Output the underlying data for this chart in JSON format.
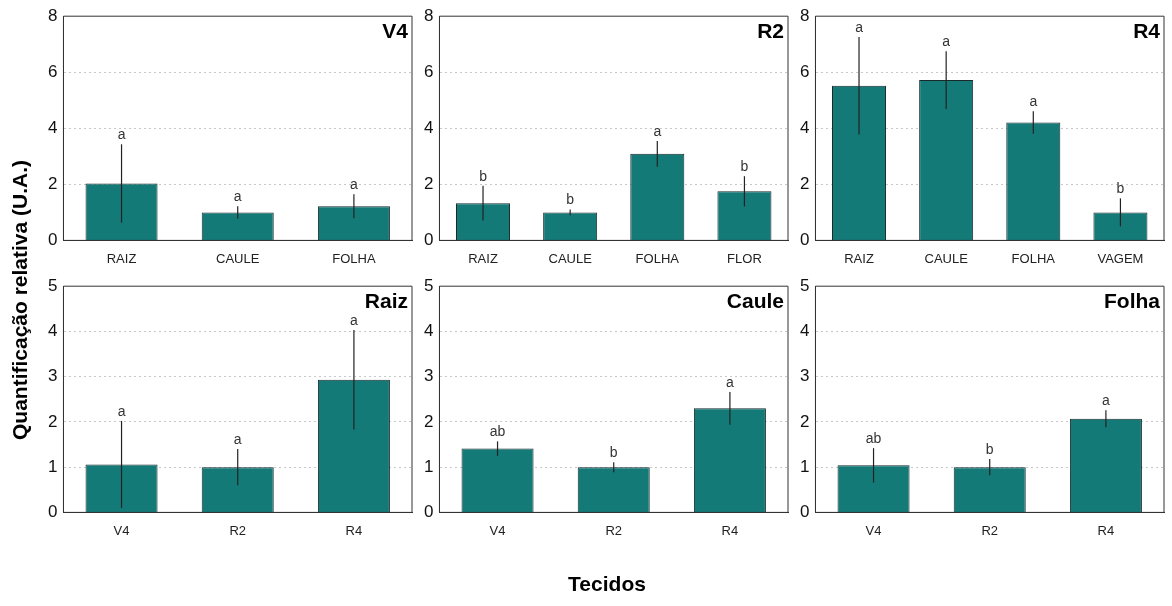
{
  "chart_data": [
    {
      "type": "bar",
      "title": "V4",
      "ylabel": "Quantificação relativa (U.A.)",
      "categories": [
        "RAIZ",
        "CAULE",
        "FOLHA"
      ],
      "values": [
        2.03,
        1.0,
        1.22
      ],
      "errors": [
        1.4,
        0.22,
        0.43
      ],
      "color": "#137a78",
      "ylim": [
        0,
        8
      ],
      "yticks": [
        0,
        2,
        4,
        6,
        8
      ],
      "grid": "y",
      "annotations": [
        {
          "text": "a",
          "x": "RAIZ",
          "y": 3.43
        },
        {
          "text": "a",
          "x": "CAULE",
          "y": 1.22
        },
        {
          "text": "a",
          "x": "FOLHA",
          "y": 1.65
        }
      ]
    },
    {
      "type": "bar",
      "title": "R2",
      "categories": [
        "RAIZ",
        "CAULE",
        "FOLHA",
        "FLOR"
      ],
      "values": [
        1.33,
        1.0,
        3.09,
        1.75
      ],
      "errors": [
        0.62,
        0.1,
        0.46,
        0.54
      ],
      "color": "#137a78",
      "ylim": [
        0,
        8
      ],
      "yticks": [
        0,
        2,
        4,
        6,
        8
      ],
      "grid": "y",
      "annotations": [
        {
          "text": "b",
          "x": "RAIZ",
          "y": 1.95
        },
        {
          "text": "b",
          "x": "CAULE",
          "y": 1.1
        },
        {
          "text": "a",
          "x": "FOLHA",
          "y": 3.55
        },
        {
          "text": "b",
          "x": "FLOR",
          "y": 2.29
        }
      ]
    },
    {
      "type": "bar",
      "title": "R4",
      "categories": [
        "RAIZ",
        "CAULE",
        "FOLHA",
        "VAGEM"
      ],
      "values": [
        5.52,
        5.72,
        4.21,
        1.0
      ],
      "errors": [
        1.74,
        1.03,
        0.4,
        0.5
      ],
      "color": "#137a78",
      "ylim": [
        0,
        8
      ],
      "yticks": [
        0,
        2,
        4,
        6,
        8
      ],
      "grid": "y",
      "annotations": [
        {
          "text": "a",
          "x": "RAIZ",
          "y": 7.26
        },
        {
          "text": "a",
          "x": "CAULE",
          "y": 6.75
        },
        {
          "text": "a",
          "x": "FOLHA",
          "y": 4.61
        },
        {
          "text": "b",
          "x": "VAGEM",
          "y": 1.5
        }
      ]
    },
    {
      "type": "bar",
      "title": "Raiz",
      "categories": [
        "V4",
        "R2",
        "R4"
      ],
      "values": [
        1.06,
        1.0,
        2.93
      ],
      "errors": [
        0.96,
        0.4,
        1.1
      ],
      "color": "#137a78",
      "ylim": [
        0,
        5
      ],
      "yticks": [
        0,
        1,
        2,
        3,
        4,
        5
      ],
      "grid": "y",
      "annotations": [
        {
          "text": "a",
          "x": "V4",
          "y": 2.02
        },
        {
          "text": "a",
          "x": "R2",
          "y": 1.4
        },
        {
          "text": "a",
          "x": "R4",
          "y": 4.03
        }
      ]
    },
    {
      "type": "bar",
      "title": "Caule",
      "xlabel": "Tecidos",
      "categories": [
        "V4",
        "R2",
        "R4"
      ],
      "values": [
        1.41,
        1.0,
        2.3
      ],
      "errors": [
        0.16,
        0.11,
        0.36
      ],
      "color": "#137a78",
      "ylim": [
        0,
        5
      ],
      "yticks": [
        0,
        1,
        2,
        3,
        4,
        5
      ],
      "grid": "y",
      "annotations": [
        {
          "text": "ab",
          "x": "V4",
          "y": 1.57
        },
        {
          "text": "b",
          "x": "R2",
          "y": 1.11
        },
        {
          "text": "a",
          "x": "R4",
          "y": 2.66
        }
      ]
    },
    {
      "type": "bar",
      "title": "Folha",
      "categories": [
        "V4",
        "R2",
        "R4"
      ],
      "values": [
        1.04,
        1.0,
        2.07
      ],
      "errors": [
        0.38,
        0.18,
        0.19
      ],
      "color": "#137a78",
      "ylim": [
        0,
        5
      ],
      "yticks": [
        0,
        1,
        2,
        3,
        4,
        5
      ],
      "grid": "y",
      "annotations": [
        {
          "text": "ab",
          "x": "V4",
          "y": 1.42
        },
        {
          "text": "b",
          "x": "R2",
          "y": 1.18
        },
        {
          "text": "a",
          "x": "R4",
          "y": 2.26
        }
      ]
    }
  ]
}
